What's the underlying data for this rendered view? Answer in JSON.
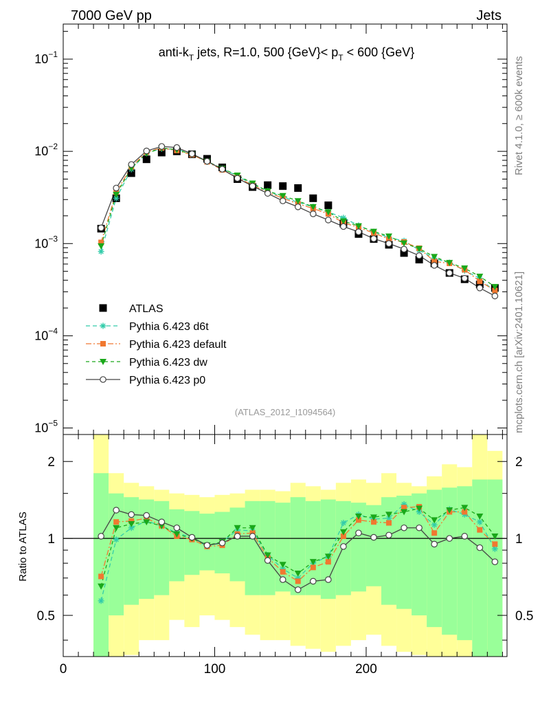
{
  "header": {
    "left": "7000 GeV pp",
    "right": "Jets"
  },
  "side": {
    "rivet": "Rivet 4.1.0, ≥ 600k events",
    "mcplots": "mcplots.cern.ch [arXiv:2401.10621]"
  },
  "chart_data": [
    {
      "type": "scatter",
      "panel": "main",
      "title": "anti-kT jets, R=1.0, 500 {GeV}< pT < 600 {GeV}",
      "title_parts": {
        "a": "anti-k",
        "a_sub": "T",
        "b": " jets, R=1.0, 500 {GeV}< p",
        "b_sub": "T",
        "c": " < 600 {GeV}"
      },
      "analysis_tag": "(ATLAS_2012_I1094564)",
      "yscale": "log",
      "xlim": [
        0,
        293
      ],
      "ylim": [
        8.5e-06,
        0.24
      ],
      "yticks": [
        {
          "value": 0.1,
          "base": "10",
          "exp": "−1"
        },
        {
          "value": 0.01,
          "base": "10",
          "exp": "−2"
        },
        {
          "value": 0.001,
          "base": "10",
          "exp": "−3"
        },
        {
          "value": 0.0001,
          "base": "10",
          "exp": "−4"
        },
        {
          "value": 1e-05,
          "base": "10",
          "exp": "−5"
        }
      ],
      "x": [
        25,
        35,
        45,
        55,
        65,
        75,
        85,
        95,
        105,
        115,
        125,
        135,
        145,
        155,
        165,
        175,
        185,
        195,
        205,
        215,
        225,
        235,
        245,
        255,
        265,
        275,
        285
      ],
      "series": [
        {
          "name": "ATLAS",
          "marker": "square",
          "color": "#000000",
          "values": [
            0.00145,
            0.0031,
            0.0058,
            0.0082,
            0.0097,
            0.01,
            0.0093,
            0.0083,
            0.0067,
            0.005,
            0.0041,
            0.0043,
            0.0042,
            0.004,
            0.0031,
            0.0026,
            0.00165,
            0.00127,
            0.00112,
            0.00097,
            0.00079,
            0.00067,
            0.00061,
            0.00048,
            0.00041,
            0.00036,
            0.00033
          ]
        },
        {
          "name": "Pythia 6.423 d6t",
          "marker": "star",
          "color": "#33ccaa",
          "dash": "6,4",
          "values": [
            0.00082,
            0.0031,
            0.0064,
            0.0096,
            0.0107,
            0.0105,
            0.0094,
            0.0077,
            0.0065,
            0.0054,
            0.0044,
            0.0037,
            0.0032,
            0.0028,
            0.0025,
            0.0022,
            0.0019,
            0.00157,
            0.00134,
            0.00116,
            0.00107,
            0.00085,
            0.00069,
            0.00062,
            0.00051,
            0.00042,
            0.0003
          ]
        },
        {
          "name": "Pythia 6.423 default",
          "marker": "square-small",
          "color": "#f07830",
          "dash": "8,3,2,3",
          "values": [
            0.00103,
            0.0036,
            0.0068,
            0.0098,
            0.0109,
            0.0102,
            0.0092,
            0.0077,
            0.0063,
            0.0052,
            0.0043,
            0.0036,
            0.0031,
            0.0027,
            0.0024,
            0.0021,
            0.00168,
            0.0015,
            0.0013,
            0.00112,
            0.00104,
            0.00089,
            0.00064,
            0.00061,
            0.00052,
            0.00039,
            0.00031
          ]
        },
        {
          "name": "Pythia 6.423 dw",
          "marker": "triangle-down",
          "color": "#1aa81a",
          "dash": "5,4",
          "values": [
            0.00094,
            0.0034,
            0.0066,
            0.0095,
            0.0109,
            0.0104,
            0.0093,
            0.0078,
            0.0065,
            0.0055,
            0.0045,
            0.0037,
            0.0033,
            0.0029,
            0.0025,
            0.0022,
            0.00175,
            0.00155,
            0.00135,
            0.0012,
            0.00101,
            0.00088,
            0.00072,
            0.00062,
            0.00054,
            0.00044,
            0.00034
          ]
        },
        {
          "name": "Pythia 6.423 p0",
          "marker": "circle-open",
          "color": "#444444",
          "dash": "",
          "values": [
            0.00148,
            0.004,
            0.0072,
            0.0101,
            0.0113,
            0.011,
            0.0094,
            0.0078,
            0.0064,
            0.0051,
            0.0042,
            0.0035,
            0.0029,
            0.0025,
            0.0021,
            0.0018,
            0.00153,
            0.00134,
            0.00113,
            0.001,
            0.00087,
            0.00074,
            0.00058,
            0.00048,
            0.00042,
            0.00033,
            0.00027
          ]
        }
      ],
      "legend": [
        "ATLAS",
        "Pythia 6.423 d6t",
        "Pythia 6.423 default",
        "Pythia 6.423 dw",
        "Pythia 6.423 p0"
      ]
    },
    {
      "type": "line",
      "panel": "ratio",
      "ylabel": "Ratio to ATLAS",
      "yscale": "log",
      "xlim": [
        0,
        293
      ],
      "ylim": [
        0.345,
        2.55
      ],
      "xticks": [
        0,
        100,
        200
      ],
      "yticks": [
        0.5,
        1,
        2
      ],
      "ytick_labels": [
        "0.5",
        "1",
        "2"
      ],
      "reference": 1,
      "bands": {
        "edges": [
          20,
          30,
          40,
          50,
          60,
          70,
          80,
          90,
          100,
          110,
          120,
          130,
          140,
          150,
          160,
          170,
          180,
          190,
          200,
          210,
          220,
          230,
          240,
          250,
          260,
          270,
          280,
          290
        ],
        "green_lo": [
          0.3,
          0.5,
          0.55,
          0.58,
          0.6,
          0.68,
          0.72,
          0.75,
          0.73,
          0.68,
          0.6,
          0.6,
          0.62,
          0.6,
          0.6,
          0.58,
          0.6,
          0.62,
          0.65,
          0.55,
          0.53,
          0.5,
          0.45,
          0.42,
          0.4,
          0.3,
          0.3
        ],
        "green_hi": [
          1.8,
          1.5,
          1.45,
          1.42,
          1.4,
          1.3,
          1.28,
          1.25,
          1.27,
          1.32,
          1.4,
          1.4,
          1.38,
          1.45,
          1.4,
          1.42,
          1.4,
          1.38,
          1.35,
          1.45,
          1.47,
          1.5,
          1.55,
          1.58,
          1.6,
          1.7,
          1.7
        ],
        "yellow_lo": [
          0.3,
          0.3,
          0.35,
          0.4,
          0.4,
          0.48,
          0.45,
          0.5,
          0.48,
          0.45,
          0.42,
          0.4,
          0.4,
          0.38,
          0.37,
          0.36,
          0.38,
          0.4,
          0.42,
          0.38,
          0.36,
          0.35,
          0.33,
          0.32,
          0.3,
          0.3,
          0.3
        ],
        "yellow_hi": [
          2.6,
          1.8,
          1.65,
          1.6,
          1.55,
          1.5,
          1.48,
          1.45,
          1.48,
          1.5,
          1.55,
          1.55,
          1.53,
          1.65,
          1.6,
          1.55,
          1.65,
          1.7,
          1.65,
          1.8,
          1.65,
          1.6,
          1.75,
          1.95,
          1.9,
          2.6,
          2.2
        ]
      },
      "x": [
        25,
        35,
        45,
        55,
        65,
        75,
        85,
        95,
        105,
        115,
        125,
        135,
        145,
        155,
        165,
        175,
        185,
        195,
        205,
        215,
        225,
        235,
        245,
        255,
        265,
        275,
        285
      ],
      "series": [
        {
          "name": "Pythia 6.423 d6t",
          "marker": "star",
          "color": "#33ccaa",
          "dash": "6,4",
          "values": [
            0.57,
            0.99,
            1.1,
            1.17,
            1.12,
            1.05,
            1.01,
            0.93,
            0.97,
            1.08,
            1.07,
            0.86,
            0.76,
            0.7,
            0.8,
            0.85,
            1.15,
            1.24,
            1.19,
            1.2,
            1.36,
            1.27,
            1.13,
            1.3,
            1.24,
            1.16,
            0.91
          ]
        },
        {
          "name": "Pythia 6.423 default",
          "marker": "square-small",
          "color": "#f07830",
          "dash": "8,3,2,3",
          "values": [
            0.71,
            1.16,
            1.17,
            1.2,
            1.12,
            1.02,
            0.99,
            0.93,
            0.94,
            1.04,
            1.05,
            0.84,
            0.74,
            0.68,
            0.77,
            0.81,
            1.02,
            1.18,
            1.16,
            1.15,
            1.32,
            1.33,
            1.05,
            1.27,
            1.27,
            1.08,
            0.95
          ]
        },
        {
          "name": "Pythia 6.423 dw",
          "marker": "triangle-down",
          "color": "#1aa81a",
          "dash": "5,4",
          "values": [
            0.65,
            1.1,
            1.14,
            1.16,
            1.12,
            1.04,
            1.0,
            0.94,
            0.97,
            1.1,
            1.1,
            0.86,
            0.79,
            0.73,
            0.81,
            0.85,
            1.06,
            1.22,
            1.21,
            1.24,
            1.27,
            1.31,
            1.18,
            1.29,
            1.32,
            1.22,
            1.02
          ]
        },
        {
          "name": "Pythia 6.423 p0",
          "marker": "circle-open",
          "color": "#444444",
          "dash": "",
          "values": [
            1.02,
            1.29,
            1.24,
            1.23,
            1.16,
            1.1,
            1.01,
            0.94,
            0.96,
            1.02,
            1.02,
            0.82,
            0.69,
            0.63,
            0.68,
            0.69,
            0.93,
            1.05,
            1.01,
            1.03,
            1.1,
            1.1,
            0.95,
            1.0,
            1.02,
            0.92,
            0.81
          ]
        }
      ]
    }
  ]
}
